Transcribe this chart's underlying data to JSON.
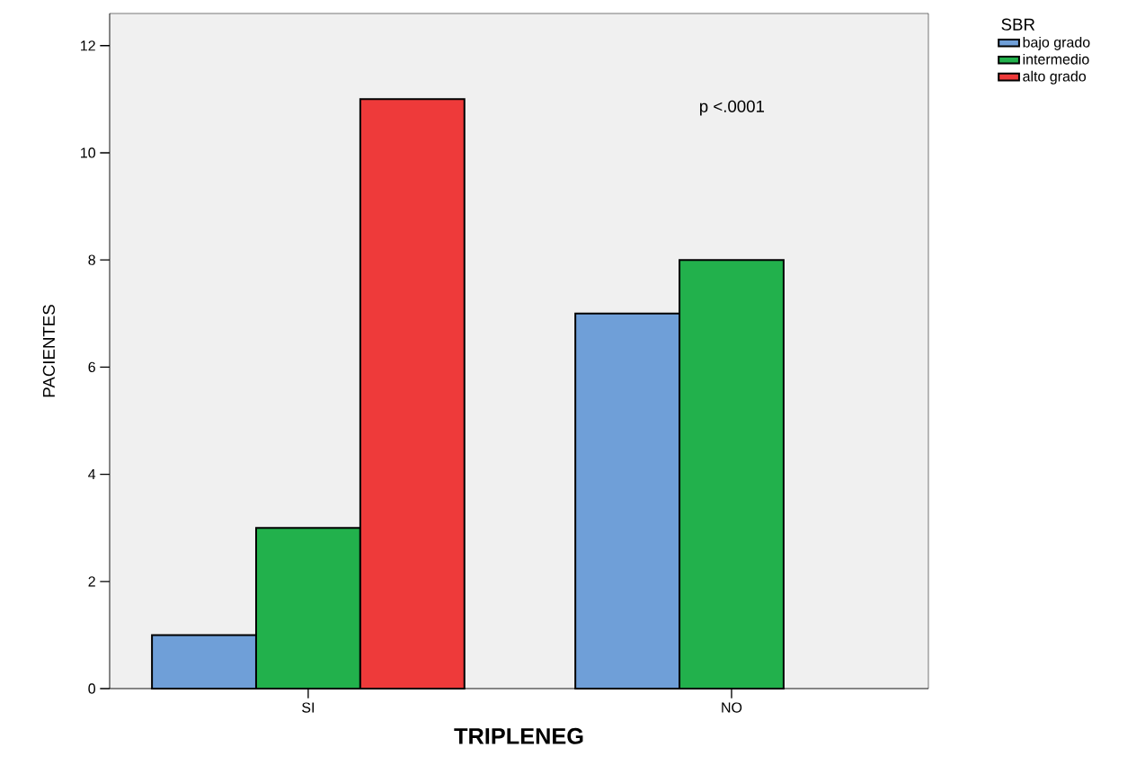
{
  "chart_data": {
    "type": "bar",
    "xlabel": "TRIPLENEG",
    "ylabel": "PACIENTES",
    "legend_title": "SBR",
    "categories": [
      "SI",
      "NO"
    ],
    "series": [
      {
        "name": "bajo grado",
        "color": "#6f9fd8",
        "values": [
          1,
          7
        ]
      },
      {
        "name": "intermedio",
        "color": "#22b14c",
        "values": [
          3,
          8
        ]
      },
      {
        "name": "alto grado",
        "color": "#ee3a3a",
        "values": [
          11,
          null
        ]
      }
    ],
    "ylim": [
      0,
      12.6
    ],
    "yticks": [
      0,
      2,
      4,
      6,
      8,
      10,
      12
    ],
    "annotations": [
      "p <.0001"
    ],
    "legend": "top right",
    "grid": false
  }
}
